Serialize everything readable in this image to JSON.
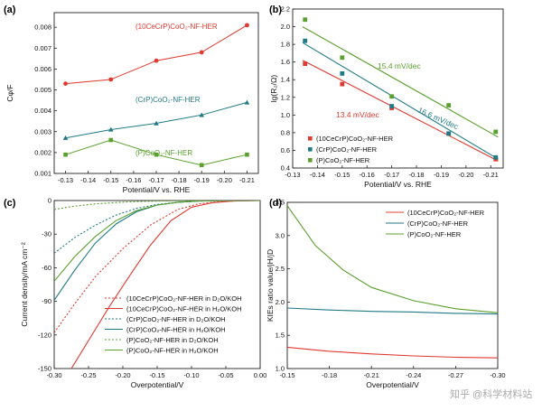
{
  "panels": [
    {
      "label": "(a)"
    },
    {
      "label": "(b)"
    },
    {
      "label": "(c)"
    },
    {
      "label": "(d)"
    }
  ],
  "watermark": "知乎 @科学材料站",
  "colors": {
    "red": "#e0392f",
    "blue": "#1f7a85",
    "green": "#5aa02c"
  },
  "chart_data": [
    {
      "type": "line",
      "panel": "(a)",
      "xlabel": "Potential/V vs. RHE",
      "ylabel": "Cφ/F",
      "x": [
        -0.13,
        -0.15,
        -0.17,
        -0.19,
        -0.21
      ],
      "xticks": [
        "-0.13",
        "-0.14",
        "-0.15",
        "-0.16",
        "-0.17",
        "-0.18",
        "-0.19",
        "-0.20",
        "-0.21"
      ],
      "xlim": [
        -0.125,
        -0.215
      ],
      "ylim": [
        0.001,
        0.0087
      ],
      "yticks": [
        "0.001",
        "0.002",
        "0.003",
        "0.004",
        "0.005",
        "0.006",
        "0.007",
        "0.008"
      ],
      "series": [
        {
          "name": "(10CeCrP)CoO₂-NF-HER",
          "color": "#e0392f",
          "marker": "circle",
          "values": [
            0.0053,
            0.0055,
            0.0064,
            0.0068,
            0.0081
          ]
        },
        {
          "name": "(CrP)CoO₂-NF-HER",
          "color": "#1f7a85",
          "marker": "triangle",
          "values": [
            0.0027,
            0.0031,
            0.0034,
            0.0038,
            0.0044
          ]
        },
        {
          "name": "(P)CoO₂-NF-HER",
          "color": "#5aa02c",
          "marker": "square",
          "values": [
            0.0019,
            0.0026,
            0.0019,
            0.0014,
            0.0019
          ]
        }
      ]
    },
    {
      "type": "scatter",
      "panel": "(b)",
      "xlabel": "Potential/V vs. RHE",
      "ylabel": "lg(R₂/Ω)",
      "xlim": [
        -0.13,
        -0.215
      ],
      "ylim": [
        0.4,
        2.2
      ],
      "xticks": [
        "-0.13",
        "-0.14",
        "-0.15",
        "-0.16",
        "-0.17",
        "-0.18",
        "-0.19",
        "-0.20",
        "-0.21"
      ],
      "yticks": [
        "0.4",
        "0.6",
        "0.8",
        "1.0",
        "1.2",
        "1.4",
        "1.6",
        "1.8",
        "2.0",
        "2.2"
      ],
      "legend": [
        "(10CeCrP)CoO₂-NF-HER",
        "(CrP)CoO₂-NF-HER",
        "(P)CoO₂-NF-HER"
      ],
      "annotations": [
        "15.4 mV/dec",
        "13.4 mV/dec",
        "16.6 mV/dec"
      ],
      "series": [
        {
          "name": "(10CeCrP)CoO₂-NF-HER",
          "color": "#e0392f",
          "x": [
            -0.135,
            -0.15,
            -0.17,
            -0.193,
            -0.212
          ],
          "y": [
            1.58,
            1.35,
            1.08,
            0.79,
            0.5
          ],
          "fit": {
            "x": [
              -0.134,
              -0.213
            ],
            "y": [
              1.62,
              0.48
            ]
          }
        },
        {
          "name": "(CrP)CoO₂-NF-HER",
          "color": "#1f7a85",
          "x": [
            -0.135,
            -0.15,
            -0.17,
            -0.193,
            -0.212
          ],
          "y": [
            1.84,
            1.47,
            1.1,
            0.79,
            0.52
          ],
          "fit": {
            "x": [
              -0.134,
              -0.213
            ],
            "y": [
              1.82,
              0.5
            ]
          }
        },
        {
          "name": "(P)CoO₂-NF-HER",
          "color": "#5aa02c",
          "x": [
            -0.135,
            -0.15,
            -0.17,
            -0.193,
            -0.212
          ],
          "y": [
            2.08,
            1.65,
            1.21,
            1.11,
            0.81
          ],
          "fit": {
            "x": [
              -0.134,
              -0.213
            ],
            "y": [
              2.0,
              0.75
            ]
          }
        }
      ]
    },
    {
      "type": "line",
      "panel": "(c)",
      "xlabel": "Overpotential/V",
      "ylabel": "Current density/mA cm⁻²",
      "xlim": [
        -0.3,
        0.0
      ],
      "ylim": [
        -150,
        0
      ],
      "xticks": [
        "-0.30",
        "-0.25",
        "-0.20",
        "-0.15",
        "-0.10",
        "-0.05",
        "0.00"
      ],
      "yticks": [
        "0",
        "-30",
        "-60",
        "-90",
        "-120",
        "-150"
      ],
      "series": [
        {
          "name": "(10CeCrP)CoO₂-NF-HER in D₂O/KOH",
          "color": "#e0392f",
          "dash": true,
          "x": [
            -0.3,
            -0.27,
            -0.24,
            -0.2,
            -0.16,
            -0.12,
            -0.09,
            -0.06,
            -0.03,
            0.0
          ],
          "y": [
            -118,
            -92,
            -68,
            -43,
            -22,
            -8,
            -3,
            -1,
            -0.3,
            0
          ]
        },
        {
          "name": "(10CeCrP)CoO₂-NF-HER in H₂O/KOH",
          "color": "#e0392f",
          "dash": false,
          "x": [
            -0.275,
            -0.25,
            -0.22,
            -0.19,
            -0.16,
            -0.13,
            -0.1,
            -0.07,
            -0.04,
            0.0
          ],
          "y": [
            -150,
            -125,
            -95,
            -67,
            -40,
            -18,
            -6,
            -2,
            -0.5,
            0
          ]
        },
        {
          "name": "(CrP)CoO₂-NF-HER in D₂O/KOH",
          "color": "#1f7a85",
          "dash": true,
          "x": [
            -0.3,
            -0.27,
            -0.24,
            -0.21,
            -0.18,
            -0.15,
            -0.12,
            -0.09,
            -0.05,
            0.0
          ],
          "y": [
            -47,
            -33,
            -22,
            -13,
            -7,
            -3.5,
            -1.5,
            -0.5,
            -0.1,
            0
          ]
        },
        {
          "name": "(CrP)CoO₂-NF-HER in H₂O/KOH",
          "color": "#1f7a85",
          "dash": false,
          "x": [
            -0.3,
            -0.27,
            -0.24,
            -0.21,
            -0.18,
            -0.15,
            -0.12,
            -0.09,
            -0.05,
            0.0
          ],
          "y": [
            -89,
            -62,
            -38,
            -21,
            -10,
            -4,
            -1.5,
            -0.5,
            -0.1,
            0
          ]
        },
        {
          "name": "(P)CoO₂-NF-HER in D₂O/KOH",
          "color": "#5aa02c",
          "dash": true,
          "x": [
            -0.3,
            -0.27,
            -0.24,
            -0.21,
            -0.18,
            -0.15,
            -0.12,
            -0.09,
            -0.05,
            0.0
          ],
          "y": [
            -8,
            -5,
            -3,
            -1.8,
            -1,
            -0.5,
            -0.2,
            -0.1,
            0,
            0
          ]
        },
        {
          "name": "(P)CoO₂-NF-HER in H₂O/KOH",
          "color": "#5aa02c",
          "dash": false,
          "x": [
            -0.3,
            -0.27,
            -0.24,
            -0.21,
            -0.18,
            -0.15,
            -0.12,
            -0.09,
            -0.05,
            0.0
          ],
          "y": [
            -72,
            -50,
            -32,
            -18,
            -9,
            -4,
            -1.5,
            -0.5,
            -0.1,
            0
          ]
        }
      ]
    },
    {
      "type": "line",
      "panel": "(d)",
      "xlabel": "Overpotential/V",
      "ylabel": "KIEs ratio value/jH/jD",
      "xlim": [
        -0.15,
        -0.3
      ],
      "ylim": [
        1.0,
        3.5
      ],
      "xticks": [
        "-0.15",
        "-0.18",
        "-0.21",
        "-0.24",
        "-0.27",
        "-0.30"
      ],
      "yticks": [
        "1.0",
        "1.5",
        "2.0",
        "2.5",
        "3.0",
        "3.5"
      ],
      "series": [
        {
          "name": "(10CeCrP)CoO₂-NF-HER",
          "color": "#e0392f",
          "x": [
            -0.15,
            -0.18,
            -0.21,
            -0.24,
            -0.27,
            -0.3
          ],
          "y": [
            1.32,
            1.26,
            1.22,
            1.19,
            1.17,
            1.16
          ]
        },
        {
          "name": "(CrP)CoO₂-NF-HER",
          "color": "#1f7a85",
          "x": [
            -0.15,
            -0.18,
            -0.21,
            -0.24,
            -0.27,
            -0.3
          ],
          "y": [
            1.91,
            1.88,
            1.86,
            1.85,
            1.83,
            1.82
          ]
        },
        {
          "name": "(P)CoO₂-NF-HER",
          "color": "#5aa02c",
          "x": [
            -0.15,
            -0.17,
            -0.19,
            -0.21,
            -0.24,
            -0.27,
            -0.3
          ],
          "y": [
            3.45,
            2.85,
            2.48,
            2.22,
            2.02,
            1.9,
            1.84
          ]
        }
      ]
    }
  ]
}
